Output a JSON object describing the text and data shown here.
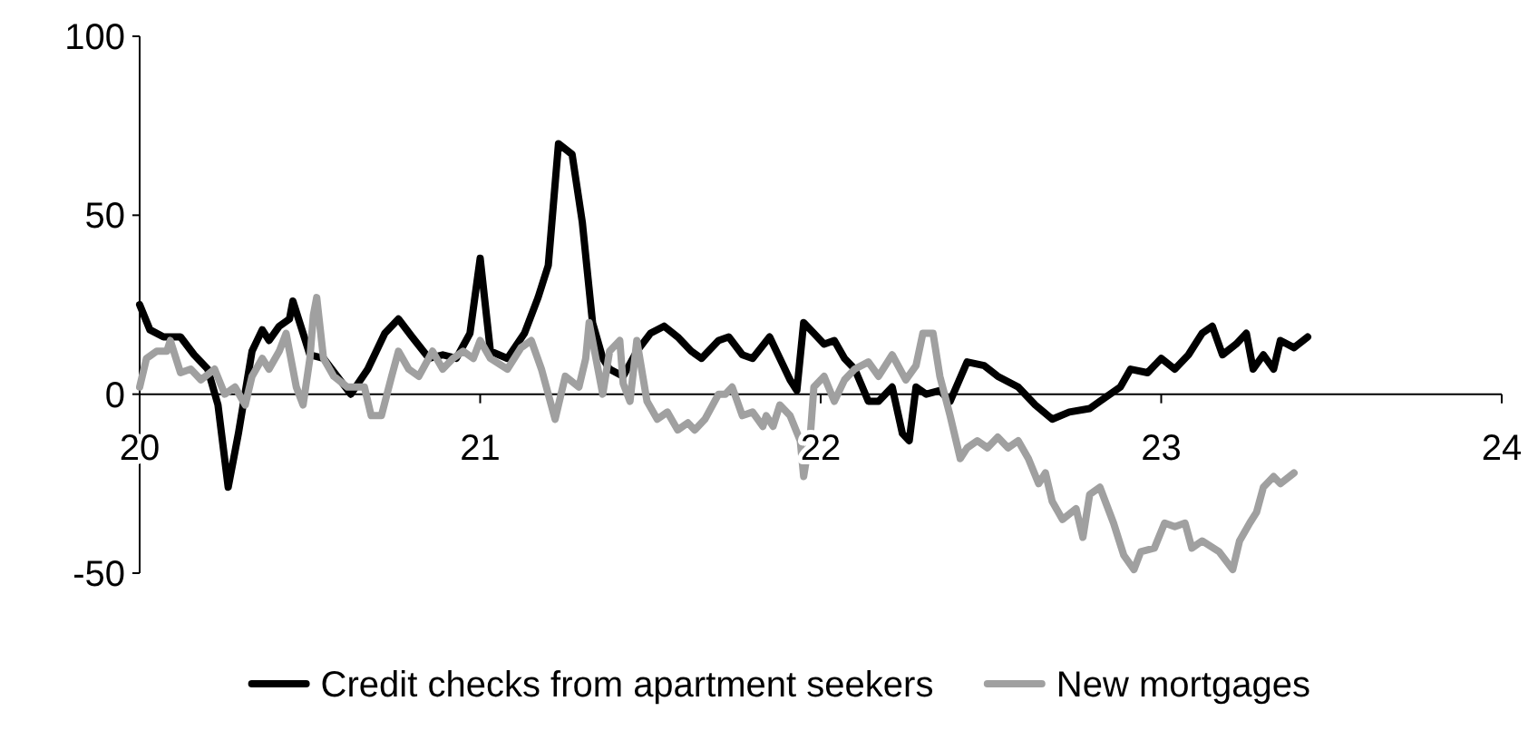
{
  "chart_data": {
    "type": "line",
    "xlim": [
      20,
      24
    ],
    "xticks": [
      20,
      21,
      22,
      23,
      24
    ],
    "ylim": [
      -50,
      100
    ],
    "yticks": [
      -50,
      0,
      50,
      100
    ],
    "grid": false,
    "legend": "bottom",
    "marker": "none",
    "line_style": "solid",
    "series": [
      {
        "name": "Credit checks from apartment seekers",
        "color": "#000000",
        "x": [
          20.0,
          20.03,
          20.07,
          20.12,
          20.16,
          20.2,
          20.23,
          20.26,
          20.29,
          20.33,
          20.36,
          20.38,
          20.41,
          20.44,
          20.45,
          20.47,
          20.5,
          20.54,
          20.58,
          20.62,
          20.67,
          20.72,
          20.76,
          20.8,
          20.85,
          20.89,
          20.93,
          20.97,
          21.0,
          21.03,
          21.08,
          21.13,
          21.17,
          21.2,
          21.23,
          21.27,
          21.3,
          21.33,
          21.36,
          21.38,
          21.42,
          21.46,
          21.5,
          21.54,
          21.58,
          21.62,
          21.65,
          21.7,
          21.73,
          21.77,
          21.8,
          21.85,
          21.91,
          21.93,
          21.95,
          21.98,
          22.01,
          22.04,
          22.07,
          22.1,
          22.14,
          22.17,
          22.21,
          22.24,
          22.26,
          22.28,
          22.31,
          22.35,
          22.38,
          22.43,
          22.48,
          22.52,
          22.58,
          22.63,
          22.68,
          22.73,
          22.79,
          22.82,
          22.88,
          22.91,
          22.96,
          23.0,
          23.04,
          23.08,
          23.12,
          23.15,
          23.18,
          23.22,
          23.25,
          23.27,
          23.3,
          23.33,
          23.35,
          23.39,
          23.43
        ],
        "values": [
          25,
          18,
          16,
          16,
          11,
          7,
          -3,
          -26,
          -11,
          12,
          18,
          15,
          19,
          21,
          26,
          20,
          11,
          10,
          5,
          0,
          7,
          17,
          21,
          16,
          10,
          11,
          10,
          17,
          38,
          12,
          10,
          17,
          27,
          36,
          70,
          67,
          48,
          20,
          10,
          7,
          5,
          12,
          17,
          19,
          16,
          12,
          10,
          15,
          16,
          11,
          10,
          16,
          4,
          1,
          20,
          17,
          14,
          15,
          10,
          7,
          -2,
          -2,
          2,
          -11,
          -13,
          2,
          0,
          1,
          -2,
          9,
          8,
          5,
          2,
          -3,
          -7,
          -5,
          -4,
          -2,
          2,
          7,
          6,
          10,
          7,
          11,
          17,
          19,
          11,
          14,
          17,
          7,
          11,
          7,
          15,
          13,
          16
        ]
      },
      {
        "name": "New mortgages",
        "color": "#a0a0a0",
        "x": [
          20.0,
          20.02,
          20.05,
          20.08,
          20.09,
          20.12,
          20.15,
          20.18,
          20.22,
          20.25,
          20.28,
          20.31,
          20.33,
          20.36,
          20.38,
          20.41,
          20.43,
          20.45,
          20.46,
          20.48,
          20.5,
          20.51,
          20.52,
          20.54,
          20.57,
          20.61,
          20.66,
          20.68,
          20.71,
          20.74,
          20.76,
          20.79,
          20.82,
          20.86,
          20.89,
          20.92,
          20.95,
          20.98,
          21.0,
          21.03,
          21.08,
          21.12,
          21.15,
          21.18,
          21.22,
          21.25,
          21.29,
          21.31,
          21.32,
          21.34,
          21.36,
          21.38,
          21.41,
          21.42,
          21.44,
          21.46,
          21.49,
          21.52,
          21.55,
          21.58,
          21.61,
          21.63,
          21.66,
          21.7,
          21.72,
          21.74,
          21.77,
          21.8,
          21.83,
          21.84,
          21.86,
          21.88,
          21.91,
          21.94,
          21.95,
          21.97,
          21.98,
          22.01,
          22.04,
          22.07,
          22.1,
          22.14,
          22.17,
          22.21,
          22.25,
          22.28,
          22.3,
          22.33,
          22.35,
          22.38,
          22.41,
          22.43,
          22.46,
          22.49,
          22.52,
          22.55,
          22.58,
          22.61,
          22.64,
          22.66,
          22.68,
          22.71,
          22.75,
          22.77,
          22.79,
          22.82,
          22.84,
          22.86,
          22.89,
          22.92,
          22.94,
          22.98,
          23.01,
          23.04,
          23.07,
          23.09,
          23.12,
          23.17,
          23.21,
          23.23,
          23.26,
          23.28,
          23.3,
          23.33,
          23.35,
          23.39
        ],
        "values": [
          2,
          10,
          12,
          12,
          15,
          6,
          7,
          4,
          7,
          0,
          2,
          -3,
          5,
          10,
          7,
          12,
          17,
          7,
          2,
          -3,
          10,
          22,
          27,
          10,
          5,
          2,
          2,
          -6,
          -6,
          5,
          12,
          7,
          5,
          12,
          7,
          10,
          12,
          10,
          15,
          10,
          7,
          13,
          15,
          7,
          -7,
          5,
          2,
          10,
          20,
          10,
          0,
          12,
          15,
          3,
          -2,
          15,
          -2,
          -7,
          -5,
          -10,
          -8,
          -10,
          -7,
          0,
          0,
          2,
          -6,
          -5,
          -9,
          -6,
          -9,
          -3,
          -6,
          -13,
          -23,
          -11,
          2,
          5,
          -2,
          4,
          7,
          9,
          5,
          11,
          4,
          8,
          17,
          17,
          5,
          -6,
          -18,
          -15,
          -13,
          -15,
          -12,
          -15,
          -13,
          -18,
          -25,
          -22,
          -30,
          -35,
          -32,
          -40,
          -28,
          -26,
          -31,
          -36,
          -45,
          -49,
          -44,
          -43,
          -36,
          -37,
          -36,
          -43,
          -41,
          -44,
          -49,
          -41,
          -36,
          -33,
          -26,
          -23,
          -25,
          -22
        ]
      }
    ]
  }
}
